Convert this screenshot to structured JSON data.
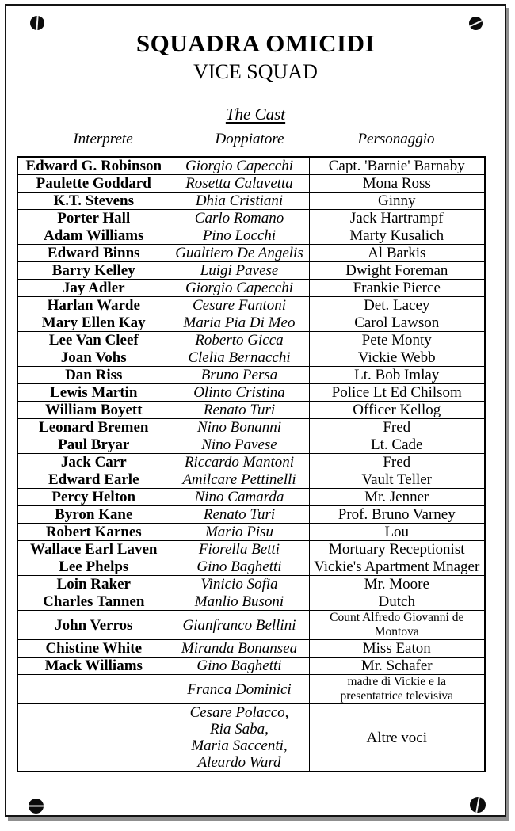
{
  "header": {
    "title": "SQUADRA OMICIDI",
    "subtitle": "VICE SQUAD",
    "section_title": "The Cast"
  },
  "table": {
    "columns": [
      "Interprete",
      "Doppiatore",
      "Personaggio"
    ],
    "rows": [
      {
        "interprete": "Edward G. Robinson",
        "doppiatore": "Giorgio Capecchi",
        "personaggio": "Capt. 'Barnie' Barnaby"
      },
      {
        "interprete": "Paulette Goddard",
        "doppiatore": "Rosetta Calavetta",
        "personaggio": "Mona Ross"
      },
      {
        "interprete": "K.T. Stevens",
        "doppiatore": "Dhia Cristiani",
        "personaggio": "Ginny"
      },
      {
        "interprete": "Porter Hall",
        "doppiatore": "Carlo Romano",
        "personaggio": "Jack Hartrampf"
      },
      {
        "interprete": "Adam Williams",
        "doppiatore": "Pino Locchi",
        "personaggio": "Marty Kusalich"
      },
      {
        "interprete": "Edward Binns",
        "doppiatore": "Gualtiero De Angelis",
        "personaggio": "Al Barkis"
      },
      {
        "interprete": "Barry Kelley",
        "doppiatore": "Luigi Pavese",
        "personaggio": "Dwight Foreman"
      },
      {
        "interprete": "Jay Adler",
        "doppiatore": "Giorgio Capecchi",
        "personaggio": "Frankie Pierce"
      },
      {
        "interprete": "Harlan Warde",
        "doppiatore": "Cesare Fantoni",
        "personaggio": "Det. Lacey"
      },
      {
        "interprete": "Mary Ellen Kay",
        "doppiatore": "Maria Pia Di Meo",
        "personaggio": "Carol Lawson"
      },
      {
        "interprete": "Lee Van Cleef",
        "doppiatore": "Roberto Gicca",
        "personaggio": "Pete Monty"
      },
      {
        "interprete": "Joan Vohs",
        "doppiatore": "Clelia Bernacchi",
        "personaggio": "Vickie Webb"
      },
      {
        "interprete": "Dan Riss",
        "doppiatore": "Bruno Persa",
        "personaggio": "Lt. Bob Imlay"
      },
      {
        "interprete": "Lewis Martin",
        "doppiatore": "Olinto Cristina",
        "personaggio": "Police Lt Ed Chilsom"
      },
      {
        "interprete": "William Boyett",
        "doppiatore": "Renato Turi",
        "personaggio": "Officer Kellog"
      },
      {
        "interprete": "Leonard Bremen",
        "doppiatore": "Nino Bonanni",
        "personaggio": "Fred"
      },
      {
        "interprete": "Paul Bryar",
        "doppiatore": "Nino Pavese",
        "personaggio": "Lt. Cade"
      },
      {
        "interprete": "Jack Carr",
        "doppiatore": "Riccardo Mantoni",
        "personaggio": "Fred"
      },
      {
        "interprete": "Edward Earle",
        "doppiatore": "Amilcare Pettinelli",
        "personaggio": "Vault Teller"
      },
      {
        "interprete": "Percy Helton",
        "doppiatore": "Nino Camarda",
        "personaggio": "Mr. Jenner"
      },
      {
        "interprete": "Byron Kane",
        "doppiatore": "Renato Turi",
        "personaggio": "Prof. Bruno Varney"
      },
      {
        "interprete": "Robert Karnes",
        "doppiatore": "Mario Pisu",
        "personaggio": "Lou"
      },
      {
        "interprete": "Wallace Earl Laven",
        "doppiatore": "Fiorella Betti",
        "personaggio": "Mortuary Receptionist"
      },
      {
        "interprete": "Lee Phelps",
        "doppiatore": "Gino Baghetti",
        "personaggio": "Vickie's Apartment Mnager"
      },
      {
        "interprete": "Loin Raker",
        "doppiatore": "Vinicio Sofia",
        "personaggio": "Mr. Moore"
      },
      {
        "interprete": "Charles Tannen",
        "doppiatore": "Manlio Busoni",
        "personaggio": "Dutch"
      },
      {
        "interprete": "John Verros",
        "doppiatore": "Gianfranco Bellini",
        "personaggio": "Count Alfredo Giovanni de\nMontova"
      },
      {
        "interprete": "Chistine White",
        "doppiatore": "Miranda Bonansea",
        "personaggio": "Miss Eaton"
      },
      {
        "interprete": "Mack Williams",
        "doppiatore": "Gino Baghetti",
        "personaggio": "Mr. Schafer"
      },
      {
        "interprete": "",
        "doppiatore": "Franca Dominici",
        "personaggio": "madre di Vickie e la\npresentatrice televisiva"
      },
      {
        "interprete": "",
        "doppiatore": "Cesare Polacco,\nRia Saba,\nMaria Saccenti,\nAleardo Ward",
        "personaggio": "Altre voci"
      }
    ]
  },
  "icons": {
    "corner_screws": [
      "screw-icon-top-left",
      "screw-icon-top-right",
      "screw-icon-bottom-left",
      "screw-icon-bottom-right"
    ]
  },
  "colors": {
    "paper": "#ffffff",
    "ink": "#000000",
    "border": "#141414",
    "shadow": "#8f8f8f"
  }
}
